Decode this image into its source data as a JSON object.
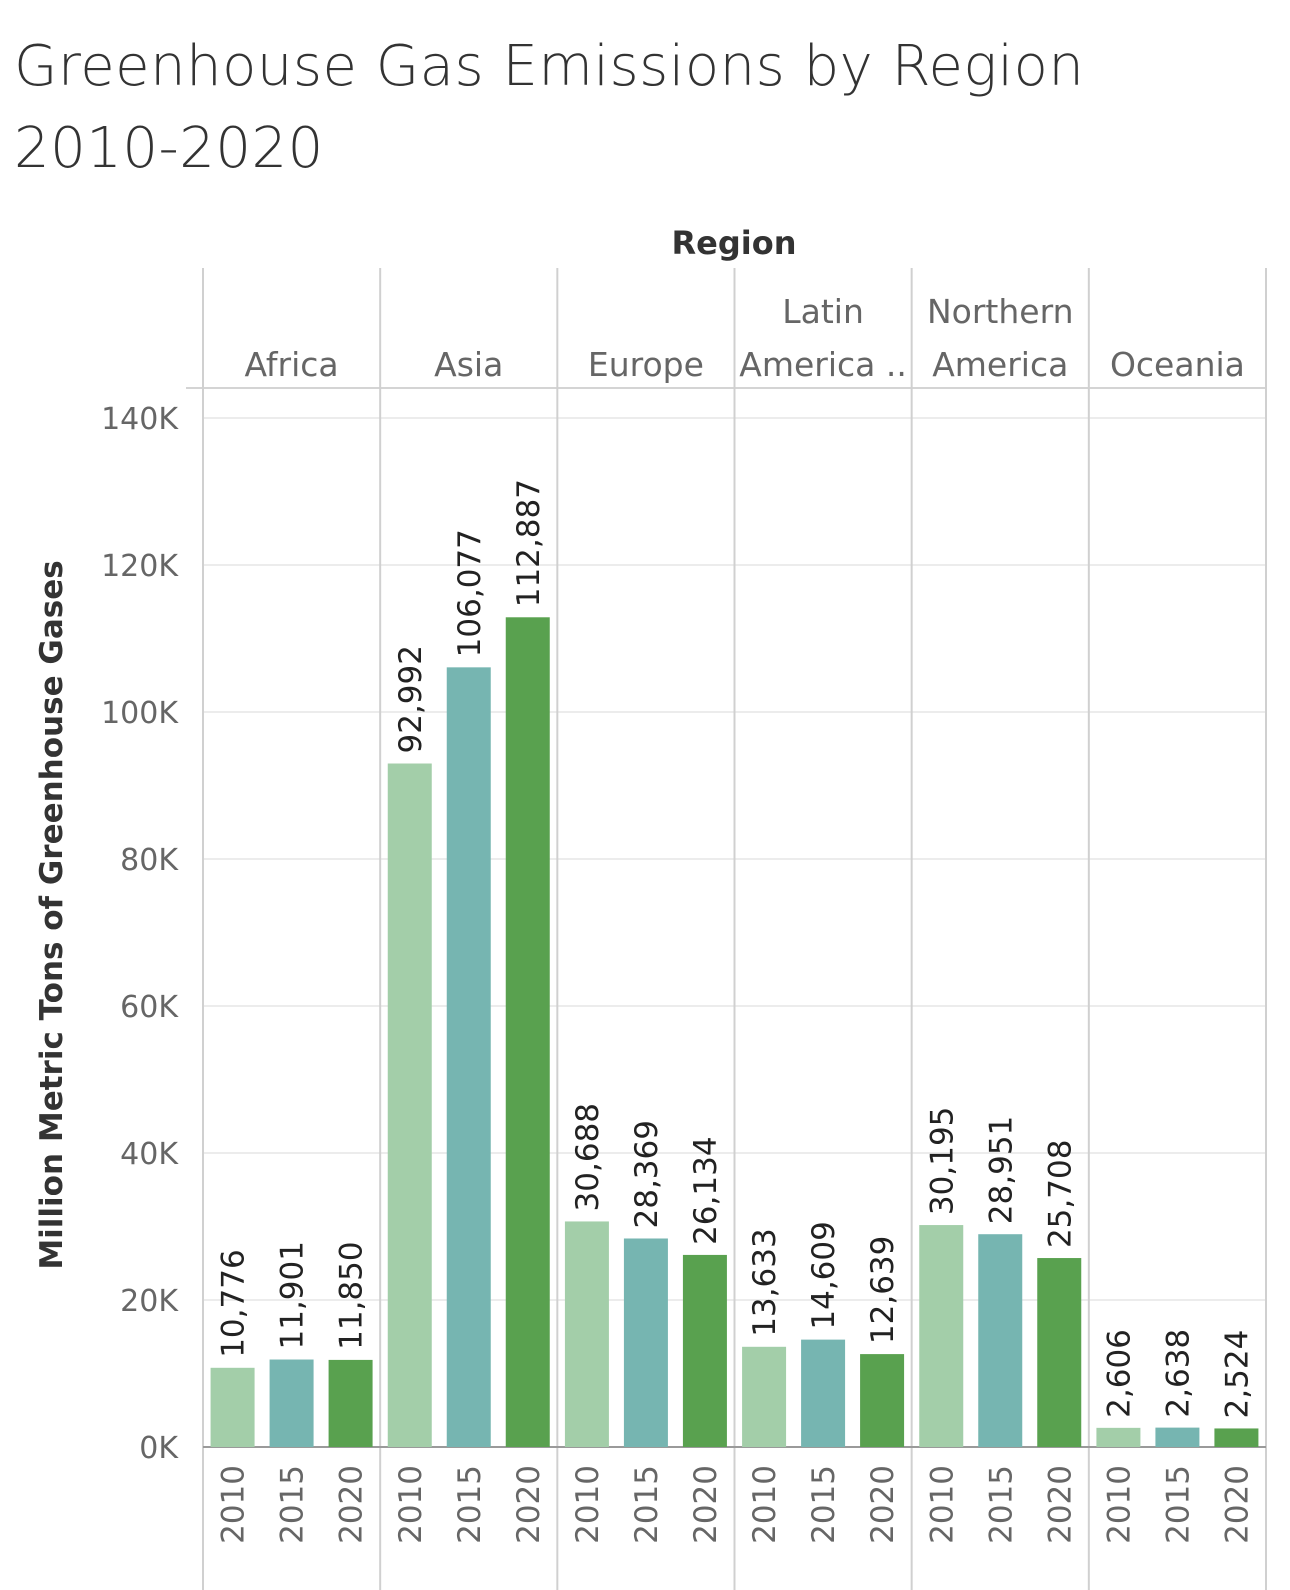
{
  "title": {
    "line1": "Greenhouse Gas Emissions by Region",
    "line2": "2010-2020"
  },
  "chart_data": {
    "type": "bar",
    "column_header": "Region",
    "ylabel": "Million Metric Tons of Greenhouse Gases",
    "ylim": [
      0,
      140000
    ],
    "yticks": [
      {
        "value": 0,
        "label": "0K"
      },
      {
        "value": 20000,
        "label": "20K"
      },
      {
        "value": 40000,
        "label": "40K"
      },
      {
        "value": 60000,
        "label": "60K"
      },
      {
        "value": 80000,
        "label": "80K"
      },
      {
        "value": 100000,
        "label": "100K"
      },
      {
        "value": 120000,
        "label": "120K"
      },
      {
        "value": 140000,
        "label": "140K"
      }
    ],
    "grid": true,
    "years": [
      "2010",
      "2015",
      "2020"
    ],
    "colors": {
      "2010": "#a3cea9",
      "2015": "#76b5b1",
      "2020": "#59a14f"
    },
    "regions": [
      {
        "name_lines": [
          "Africa"
        ],
        "values": [
          10776,
          11901,
          11850
        ],
        "labels": [
          "10,776",
          "11,901",
          "11,850"
        ]
      },
      {
        "name_lines": [
          "Asia"
        ],
        "values": [
          92992,
          106077,
          112887
        ],
        "labels": [
          "92,992",
          "106,077",
          "112,887"
        ]
      },
      {
        "name_lines": [
          "Europe"
        ],
        "values": [
          30688,
          28369,
          26134
        ],
        "labels": [
          "30,688",
          "28,369",
          "26,134"
        ]
      },
      {
        "name_lines": [
          "Latin",
          "America .."
        ],
        "values": [
          13633,
          14609,
          12639
        ],
        "labels": [
          "13,633",
          "14,609",
          "12,639"
        ]
      },
      {
        "name_lines": [
          "Northern",
          "America"
        ],
        "values": [
          30195,
          28951,
          25708
        ],
        "labels": [
          "30,195",
          "28,951",
          "25,708"
        ]
      },
      {
        "name_lines": [
          "Oceania"
        ],
        "values": [
          2606,
          2638,
          2524
        ],
        "labels": [
          "2,606",
          "2,638",
          "2,524"
        ]
      }
    ]
  }
}
